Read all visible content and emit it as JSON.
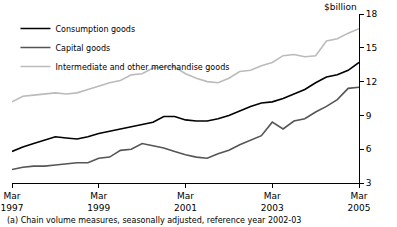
{
  "chart_data": {
    "type": "line",
    "ylabel": "$billion",
    "footnote": "(a) Chain volume measures, seasonally adjusted, reference year 2002-03",
    "categories": [
      "Mar 1997",
      null,
      null,
      null,
      null,
      null,
      null,
      null,
      "Mar 1999",
      null,
      null,
      null,
      null,
      null,
      null,
      null,
      "Mar 2001",
      null,
      null,
      null,
      null,
      null,
      null,
      null,
      "Mar 2003",
      null,
      null,
      null,
      null,
      null,
      null,
      null,
      "Mar 2005"
    ],
    "series": [
      {
        "name": "Consumption goods",
        "color": "#000000",
        "values": [
          5.8,
          6.2,
          6.5,
          6.8,
          7.1,
          7.0,
          6.9,
          7.1,
          7.4,
          7.6,
          7.8,
          8.0,
          8.2,
          8.4,
          8.9,
          8.9,
          8.6,
          8.5,
          8.5,
          8.7,
          9.0,
          9.4,
          9.8,
          10.1,
          10.2,
          10.5,
          10.9,
          11.3,
          11.9,
          12.4,
          12.6,
          13.0,
          13.7
        ]
      },
      {
        "name": "Capital goods",
        "color": "#555555",
        "values": [
          4.2,
          4.4,
          4.5,
          4.5,
          4.6,
          4.7,
          4.8,
          4.8,
          5.2,
          5.3,
          5.9,
          6.0,
          6.5,
          6.3,
          6.1,
          5.8,
          5.5,
          5.3,
          5.2,
          5.6,
          5.9,
          6.4,
          6.8,
          7.2,
          8.4,
          7.8,
          8.5,
          8.7,
          9.3,
          9.8,
          10.4,
          11.4,
          11.5
        ]
      },
      {
        "name": "Intermediate and other merchandise goods",
        "color": "#bbbbbb",
        "values": [
          10.2,
          10.7,
          10.8,
          10.9,
          11.0,
          10.9,
          11.0,
          11.3,
          11.6,
          11.9,
          12.1,
          12.6,
          12.7,
          13.2,
          13.3,
          13.3,
          12.7,
          12.3,
          12.0,
          11.9,
          12.3,
          12.9,
          13.0,
          13.4,
          13.7,
          14.3,
          14.4,
          14.2,
          14.3,
          15.6,
          15.8,
          16.3,
          16.7
        ]
      }
    ],
    "ylim": [
      3,
      18
    ],
    "yticks": [
      3,
      6,
      9,
      12,
      15,
      18
    ],
    "grid": false,
    "legend": "top-left"
  }
}
